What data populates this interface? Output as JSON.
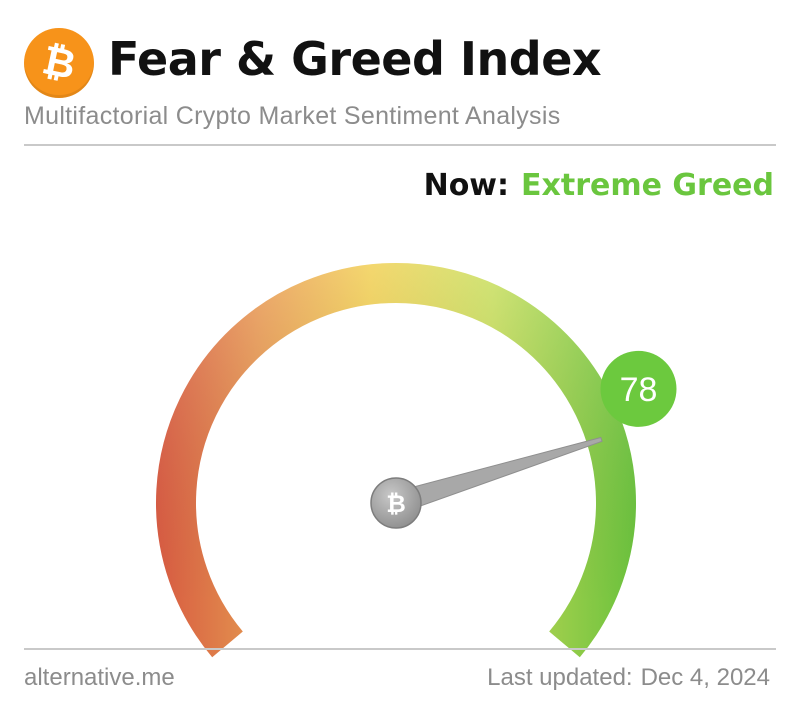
{
  "header": {
    "logo_icon": "bitcoin-icon",
    "logo_glyph": "₿",
    "title": "Fear & Greed Index",
    "subtitle": "Multifactorial Crypto Market Sentiment Analysis"
  },
  "status": {
    "now_label": "Now:",
    "now_value": "Extreme Greed"
  },
  "gauge": {
    "value": 78,
    "value_text": "78",
    "min": 0,
    "max": 100,
    "hub_glyph": "₿",
    "colors": {
      "fear": "#e05a43",
      "neutral": "#f2cf50",
      "greed": "#a4dd55",
      "extreme_greed": "#6cc93e",
      "needle": "#a8a8a8",
      "badge": "#6cc93e"
    }
  },
  "footer": {
    "source": "alternative.me",
    "updated_label": "Last updated:",
    "updated_date": "Dec 4, 2024"
  }
}
